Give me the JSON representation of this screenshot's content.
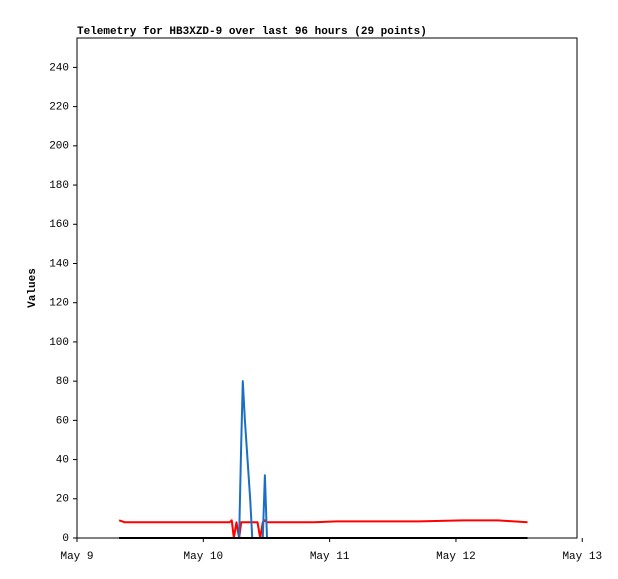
{
  "chart_data": {
    "type": "line",
    "title": "Telemetry for HB3XZD-9 over last 96 hours (29 points)",
    "ylabel": "Values",
    "x": [
      8.0,
      9.1,
      29.0,
      29.4,
      29.8,
      30.3,
      30.8,
      31.2,
      31.5,
      31.9,
      32.4,
      32.9,
      33.3,
      33.8,
      34.3,
      34.8,
      35.3,
      35.7,
      36.1,
      36.6,
      40.0,
      45.0,
      49.3,
      55.0,
      60.0,
      65.0,
      73.3,
      80.0,
      85.6
    ],
    "series": [
      {
        "color": "#ff0000",
        "values": [
          9,
          8,
          8,
          9,
          0,
          8,
          0,
          8,
          8,
          8,
          8,
          8,
          8,
          8,
          8,
          0,
          8,
          9,
          8,
          8,
          8,
          8,
          8.5,
          8.5,
          8.5,
          8.5,
          9,
          9,
          8
        ]
      },
      {
        "color": "#1a6fc4",
        "values": [
          0,
          0,
          0,
          0,
          0,
          0,
          0,
          48,
          80,
          60,
          40,
          20,
          0,
          0,
          0,
          0,
          0,
          32,
          0,
          0,
          0,
          0,
          0,
          0,
          0,
          0,
          0,
          0,
          0
        ]
      },
      {
        "color": "#000000",
        "values": [
          0,
          0,
          0,
          0,
          0,
          0,
          0,
          0,
          0,
          0,
          0,
          0,
          0,
          0,
          0,
          0,
          0,
          0,
          0,
          0,
          0,
          0,
          0,
          0,
          0,
          0,
          0,
          0,
          0
        ]
      }
    ],
    "xlim": [
      0,
      95
    ],
    "xticks": [
      {
        "value": 0,
        "label": "May 9"
      },
      {
        "value": 24,
        "label": "May 10"
      },
      {
        "value": 48,
        "label": "May 11"
      },
      {
        "value": 72,
        "label": "May 12"
      },
      {
        "value": 96,
        "label": "May 13"
      }
    ],
    "ylim": [
      0,
      255
    ],
    "yticks": [
      0,
      20,
      40,
      60,
      80,
      100,
      120,
      140,
      160,
      180,
      200,
      220,
      240
    ]
  }
}
